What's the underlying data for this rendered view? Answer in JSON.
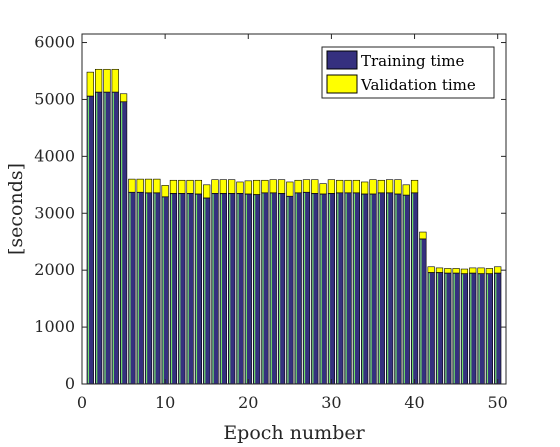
{
  "chart_data": {
    "type": "bar",
    "stacked": true,
    "xlabel": "Epoch number",
    "ylabel": "[seconds]",
    "xlim": [
      0,
      51
    ],
    "ylim": [
      0,
      6150
    ],
    "xticks": [
      0,
      10,
      20,
      30,
      40,
      50
    ],
    "yticks": [
      0,
      1000,
      2000,
      3000,
      4000,
      5000,
      6000
    ],
    "grid": false,
    "legend_position": "top-right",
    "x": [
      1,
      2,
      3,
      4,
      5,
      6,
      7,
      8,
      9,
      10,
      11,
      12,
      13,
      14,
      15,
      16,
      17,
      18,
      19,
      20,
      21,
      22,
      23,
      24,
      25,
      26,
      27,
      28,
      29,
      30,
      31,
      32,
      33,
      34,
      35,
      36,
      37,
      38,
      39,
      40,
      41,
      42,
      43,
      44,
      45,
      46,
      47,
      48,
      49,
      50
    ],
    "series": [
      {
        "name": "Training time",
        "color": "#35307f",
        "values": [
          5060,
          5130,
          5130,
          5130,
          4960,
          3370,
          3370,
          3360,
          3360,
          3290,
          3350,
          3350,
          3350,
          3340,
          3270,
          3350,
          3350,
          3350,
          3350,
          3340,
          3330,
          3360,
          3360,
          3350,
          3300,
          3360,
          3370,
          3350,
          3340,
          3350,
          3360,
          3360,
          3360,
          3340,
          3340,
          3360,
          3360,
          3340,
          3320,
          3360,
          2550,
          1960,
          1960,
          1950,
          1950,
          1940,
          1950,
          1940,
          1940,
          1950
        ]
      },
      {
        "name": "Validation time",
        "color": "#ffff00",
        "values": [
          420,
          400,
          400,
          400,
          140,
          230,
          230,
          240,
          240,
          200,
          230,
          230,
          230,
          240,
          230,
          240,
          240,
          240,
          200,
          230,
          250,
          220,
          230,
          240,
          250,
          220,
          220,
          240,
          180,
          240,
          220,
          220,
          220,
          210,
          250,
          220,
          230,
          250,
          180,
          220,
          120,
          100,
          80,
          80,
          80,
          80,
          90,
          100,
          90,
          110
        ]
      }
    ],
    "bar_stroke": "#000000",
    "bar_highlight": "#74e06a"
  }
}
